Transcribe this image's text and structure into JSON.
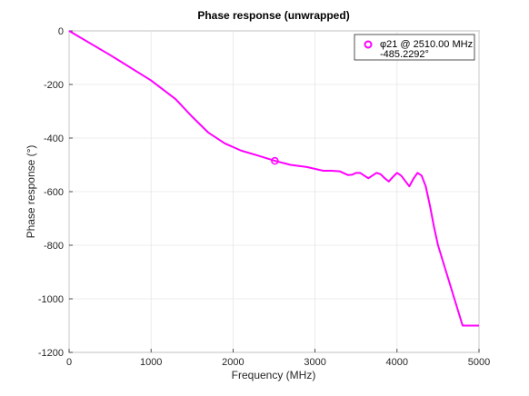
{
  "chart_data": {
    "type": "line",
    "title": "Phase response (unwrapped)",
    "xlabel": "Frequency (MHz)",
    "ylabel": "Phase response (°)",
    "xlim": [
      0,
      5000
    ],
    "ylim": [
      -1200,
      0
    ],
    "xticks": [
      0,
      1000,
      2000,
      3000,
      4000,
      5000
    ],
    "yticks": [
      0,
      -200,
      -400,
      -600,
      -800,
      -1000,
      -1200
    ],
    "xtick_labels": [
      "0",
      "1000",
      "2000",
      "3000",
      "4000",
      "5000"
    ],
    "ytick_labels": [
      "0",
      "-200",
      "-400",
      "-600",
      "-800",
      "-1000",
      "-1200"
    ],
    "grid": true,
    "legend": {
      "location": "top-right",
      "entries": [
        "φ21 @ 2510.00 MHz",
        "-485.2292°"
      ]
    },
    "marker": {
      "x": 2510,
      "y": -485.2292
    },
    "series": [
      {
        "color": "#ff00ff",
        "x": [
          0,
          500,
          1000,
          1300,
          1500,
          1700,
          1900,
          2100,
          2300,
          2510,
          2700,
          2900,
          3100,
          3200,
          3300,
          3400,
          3450,
          3500,
          3550,
          3600,
          3650,
          3700,
          3750,
          3800,
          3850,
          3900,
          3950,
          4000,
          4050,
          4100,
          4150,
          4200,
          4250,
          4300,
          4350,
          4400,
          4450,
          4500,
          4550,
          4600,
          4650,
          4700,
          4750,
          4800,
          4850,
          4900,
          4950,
          5000
        ],
        "y": [
          0,
          -90,
          -185,
          -255,
          -320,
          -380,
          -420,
          -447,
          -465,
          -485,
          -500,
          -508,
          -522,
          -522,
          -524,
          -538,
          -537,
          -530,
          -530,
          -540,
          -550,
          -540,
          -530,
          -535,
          -550,
          -562,
          -545,
          -530,
          -540,
          -560,
          -580,
          -552,
          -530,
          -540,
          -580,
          -650,
          -730,
          -800,
          -850,
          -900,
          -950,
          -1000,
          -1050,
          -1100,
          -1100,
          -1100,
          -1100,
          -1100
        ]
      }
    ]
  },
  "colors": {
    "line": "#ff00ff",
    "grid": "#e6e6e6",
    "axis": "#262626"
  }
}
